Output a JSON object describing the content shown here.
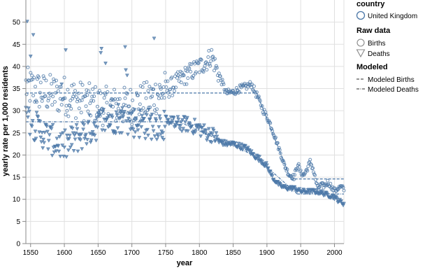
{
  "chart_data": {
    "type": "scatter",
    "title": "",
    "xlabel": "year",
    "ylabel": "yearly rate per 1,000 residents",
    "xlim": [
      1543,
      2014
    ],
    "ylim": [
      0,
      55
    ],
    "x_ticks": [
      "1550",
      "1600",
      "1650",
      "1700",
      "1750",
      "1800",
      "1850",
      "1900",
      "1950",
      "2000"
    ],
    "y_ticks": [
      "0",
      "5",
      "10",
      "15",
      "20",
      "25",
      "30",
      "35",
      "40",
      "45",
      "50"
    ],
    "grid": true,
    "color": "#4c78a8",
    "legend": {
      "placement": "right",
      "groups": [
        {
          "title": "country",
          "entries": [
            {
              "label": "United Kingdom",
              "symbol": "circle-large"
            }
          ]
        },
        {
          "title": "Raw data",
          "entries": [
            {
              "label": "Births",
              "symbol": "circle"
            },
            {
              "label": "Deaths",
              "symbol": "triangle-down"
            }
          ]
        },
        {
          "title": "Modeled",
          "entries": [
            {
              "label": "Modeled Births",
              "symbol": "dash"
            },
            {
              "label": "Modeled Deaths",
              "symbol": "dashdot"
            }
          ]
        }
      ]
    },
    "births_trend": [
      [
        1543,
        35.5
      ],
      [
        1570,
        34.0
      ],
      [
        1600,
        33.5
      ],
      [
        1630,
        32.0
      ],
      [
        1660,
        31.0
      ],
      [
        1690,
        31.0
      ],
      [
        1720,
        32.0
      ],
      [
        1740,
        34.0
      ],
      [
        1760,
        35.5
      ],
      [
        1775,
        37.5
      ],
      [
        1790,
        39.0
      ],
      [
        1800,
        40.0
      ],
      [
        1810,
        41.0
      ],
      [
        1818,
        42.5
      ],
      [
        1825,
        39.5
      ],
      [
        1832,
        37.0
      ],
      [
        1840,
        34.0
      ],
      [
        1850,
        34.2
      ],
      [
        1860,
        35.0
      ],
      [
        1870,
        35.5
      ],
      [
        1877,
        36.0
      ],
      [
        1885,
        33.5
      ],
      [
        1895,
        30.0
      ],
      [
        1905,
        27.0
      ],
      [
        1912,
        24.0
      ],
      [
        1920,
        20.5
      ],
      [
        1925,
        18.0
      ],
      [
        1933,
        15.5
      ],
      [
        1940,
        15.0
      ],
      [
        1946,
        18.0
      ],
      [
        1950,
        16.0
      ],
      [
        1955,
        15.5
      ],
      [
        1960,
        17.0
      ],
      [
        1964,
        18.5
      ],
      [
        1968,
        17.0
      ],
      [
        1975,
        12.5
      ],
      [
        1980,
        13.2
      ],
      [
        1985,
        13.0
      ],
      [
        1990,
        13.8
      ],
      [
        1995,
        13.0
      ],
      [
        2000,
        11.8
      ],
      [
        2005,
        12.5
      ],
      [
        2010,
        12.8
      ],
      [
        2014,
        12.2
      ]
    ],
    "deaths_trend": [
      [
        1543,
        29.0
      ],
      [
        1560,
        26.0
      ],
      [
        1580,
        23.5
      ],
      [
        1600,
        22.0
      ],
      [
        1620,
        24.0
      ],
      [
        1640,
        26.0
      ],
      [
        1660,
        28.0
      ],
      [
        1680,
        28.5
      ],
      [
        1700,
        27.5
      ],
      [
        1720,
        27.0
      ],
      [
        1740,
        27.0
      ],
      [
        1760,
        27.0
      ],
      [
        1780,
        27.0
      ],
      [
        1800,
        26.0
      ],
      [
        1810,
        25.0
      ],
      [
        1820,
        24.5
      ],
      [
        1830,
        23.0
      ],
      [
        1840,
        22.5
      ],
      [
        1850,
        22.5
      ],
      [
        1860,
        22.0
      ],
      [
        1870,
        21.5
      ],
      [
        1880,
        20.0
      ],
      [
        1890,
        19.0
      ],
      [
        1900,
        17.5
      ],
      [
        1910,
        14.5
      ],
      [
        1920,
        13.0
      ],
      [
        1930,
        12.5
      ],
      [
        1940,
        12.5
      ],
      [
        1950,
        11.8
      ],
      [
        1960,
        11.8
      ],
      [
        1970,
        11.8
      ],
      [
        1980,
        11.5
      ],
      [
        1990,
        11.0
      ],
      [
        2000,
        10.5
      ],
      [
        2005,
        9.8
      ],
      [
        2014,
        9.0
      ]
    ],
    "modeled_births": [
      {
        "x": [
          1543,
          1885
        ],
        "y": [
          34.0,
          34.0
        ]
      },
      {
        "x": [
          1885,
          1935
        ],
        "y": [
          34.0,
          14.6
        ]
      },
      {
        "x": [
          1935,
          2014
        ],
        "y": [
          14.6,
          14.6
        ]
      }
    ],
    "modeled_deaths": [
      {
        "x": [
          1543,
          1770
        ],
        "y": [
          27.5,
          27.5
        ]
      },
      {
        "x": [
          1770,
          1880
        ],
        "y": [
          27.5,
          20.0
        ]
      },
      {
        "x": [
          1880,
          1945
        ],
        "y": [
          20.0,
          11.2
        ]
      },
      {
        "x": [
          1945,
          2014
        ],
        "y": [
          11.2,
          11.2
        ]
      }
    ]
  }
}
